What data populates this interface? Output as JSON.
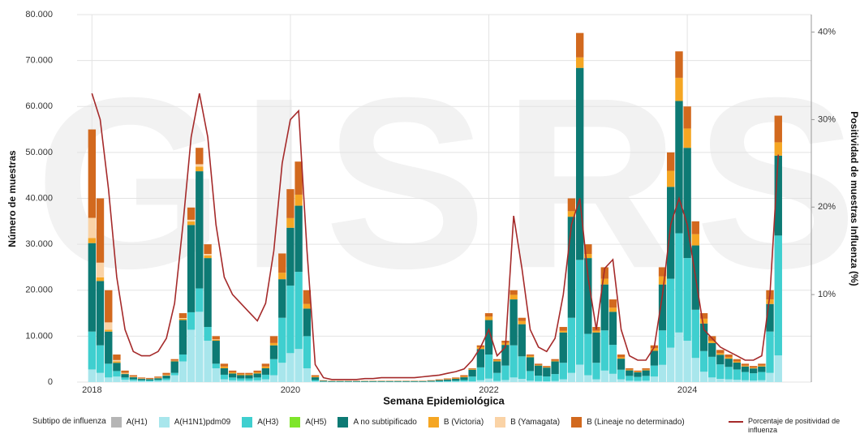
{
  "chart_data": {
    "type": "bar",
    "stacked": true,
    "watermark": "GISRS",
    "x_label": "Semana Epidemiológica",
    "y_label": "Número de muestras",
    "y2_label": "Positividad de muestras Influenza (%)",
    "legend_title": "Subtipo de influenza",
    "grid": true,
    "xlim": [
      2017.85,
      2025.25
    ],
    "xticks": [
      2018,
      2020,
      2022,
      2024
    ],
    "ylim": [
      0,
      80000
    ],
    "yticks": [
      0,
      {
        "value": 10000,
        "label": "10.000"
      },
      {
        "value": 20000,
        "label": "20.000"
      },
      {
        "value": 30000,
        "label": "30.000"
      },
      {
        "value": 40000,
        "label": "40.000"
      },
      {
        "value": 50000,
        "label": "50.000"
      },
      {
        "value": 60000,
        "label": "60.000"
      },
      {
        "value": 70000,
        "label": "70.000"
      },
      {
        "value": 80000,
        "label": "80.000"
      }
    ],
    "y2lim": [
      0,
      42
    ],
    "y2ticks": [
      {
        "value": 10,
        "label": "10%"
      },
      {
        "value": 20,
        "label": "20%"
      },
      {
        "value": 30,
        "label": "30%"
      },
      {
        "value": 40,
        "label": "40%"
      }
    ],
    "x": [
      2018,
      2018.083,
      2018.167,
      2018.25,
      2018.333,
      2018.417,
      2018.5,
      2018.583,
      2018.667,
      2018.75,
      2018.833,
      2018.917,
      2019,
      2019.083,
      2019.167,
      2019.25,
      2019.333,
      2019.417,
      2019.5,
      2019.583,
      2019.667,
      2019.75,
      2019.833,
      2019.917,
      2020,
      2020.083,
      2020.167,
      2020.25,
      2020.333,
      2020.417,
      2020.5,
      2020.583,
      2020.667,
      2020.75,
      2020.833,
      2020.917,
      2021,
      2021.083,
      2021.167,
      2021.25,
      2021.333,
      2021.417,
      2021.5,
      2021.583,
      2021.667,
      2021.75,
      2021.833,
      2021.917,
      2022,
      2022.083,
      2022.167,
      2022.25,
      2022.333,
      2022.417,
      2022.5,
      2022.583,
      2022.667,
      2022.75,
      2022.833,
      2022.917,
      2023,
      2023.083,
      2023.167,
      2023.25,
      2023.333,
      2023.417,
      2023.5,
      2023.583,
      2023.667,
      2023.75,
      2023.833,
      2023.917,
      2024,
      2024.083,
      2024.167,
      2024.25,
      2024.333,
      2024.417,
      2024.5,
      2024.583,
      2024.667,
      2024.75,
      2024.833,
      2024.917
    ],
    "series": [
      {
        "name": "A(H1)",
        "color": "#b5b5b5",
        "values": [
          0,
          0,
          0,
          0,
          0,
          0,
          0,
          0,
          0,
          0,
          0,
          0,
          0,
          0,
          0,
          0,
          0,
          0,
          0,
          0,
          0,
          0,
          0,
          0,
          0,
          0,
          0,
          0,
          0,
          0,
          0,
          0,
          0,
          0,
          0,
          0,
          0,
          0,
          0,
          0,
          0,
          0,
          0,
          0,
          0,
          0,
          0,
          0,
          0,
          0,
          0,
          0,
          0,
          0,
          0,
          0,
          0,
          0,
          0,
          0,
          0,
          0,
          0,
          0,
          0,
          0,
          0,
          0,
          0,
          0,
          0,
          0,
          0,
          0,
          0,
          0,
          0,
          0,
          0,
          0,
          0,
          0,
          0,
          0
        ]
      },
      {
        "name": "A(H1N1)pdm09",
        "color": "#a8e6ec",
        "values": [
          2750,
          2000,
          1000,
          1200,
          500,
          300,
          200,
          180,
          240,
          400,
          1500,
          4500,
          11400,
          15300,
          9000,
          3000,
          600,
          375,
          300,
          300,
          375,
          600,
          1500,
          4200,
          6300,
          7200,
          3000,
          150,
          40,
          30,
          30,
          30,
          30,
          30,
          30,
          30,
          30,
          30,
          30,
          30,
          30,
          40,
          60,
          80,
          100,
          150,
          150,
          400,
          750,
          250,
          450,
          1000,
          700,
          300,
          200,
          175,
          250,
          600,
          2000,
          3800,
          1500,
          600,
          2500,
          1800,
          600,
          300,
          250,
          300,
          1200,
          3750,
          7500,
          10800,
          9000,
          5250,
          2250,
          1000,
          700,
          600,
          500,
          400,
          350,
          400,
          2000,
          5800
        ]
      },
      {
        "name": "A(H3)",
        "color": "#3fcfcf",
        "values": [
          8250,
          6000,
          3000,
          1200,
          500,
          300,
          200,
          180,
          240,
          400,
          500,
          1500,
          3800,
          5100,
          3000,
          1000,
          1000,
          625,
          500,
          500,
          625,
          1000,
          3500,
          9800,
          14700,
          16800,
          7000,
          300,
          80,
          60,
          60,
          60,
          60,
          60,
          60,
          60,
          60,
          60,
          60,
          60,
          60,
          80,
          120,
          160,
          200,
          300,
          1050,
          2800,
          5250,
          1750,
          3150,
          7000,
          4900,
          2100,
          1200,
          1050,
          1500,
          3600,
          12000,
          22800,
          9000,
          3600,
          8750,
          6300,
          2100,
          1050,
          875,
          1050,
          2400,
          7500,
          15000,
          21600,
          18000,
          10500,
          4500,
          4500,
          3150,
          2700,
          2250,
          1800,
          1575,
          1800,
          9000,
          26100
        ]
      },
      {
        "name": "A(H5)",
        "color": "#7ee52a",
        "values": [
          0,
          0,
          0,
          0,
          0,
          0,
          0,
          0,
          0,
          0,
          0,
          0,
          0,
          0,
          0,
          0,
          0,
          0,
          0,
          0,
          0,
          0,
          0,
          0,
          0,
          0,
          0,
          0,
          0,
          0,
          0,
          0,
          0,
          0,
          0,
          0,
          0,
          0,
          0,
          0,
          0,
          0,
          0,
          0,
          0,
          0,
          0,
          0,
          0,
          0,
          0,
          0,
          0,
          0,
          0,
          0,
          0,
          0,
          0,
          0,
          0,
          0,
          0,
          0,
          0,
          0,
          0,
          0,
          0,
          0,
          0,
          0,
          0,
          0,
          0,
          0,
          0,
          0,
          0,
          0,
          0,
          0,
          0,
          0
        ]
      },
      {
        "name": "A no subtipificado",
        "color": "#0d7a74",
        "values": [
          19250,
          14000,
          7000,
          1800,
          750,
          450,
          300,
          270,
          360,
          600,
          2500,
          7500,
          19000,
          25500,
          15000,
          5000,
          1400,
          875,
          700,
          700,
          875,
          1400,
          3000,
          8400,
          12600,
          14400,
          6000,
          600,
          160,
          120,
          120,
          120,
          120,
          120,
          120,
          120,
          120,
          120,
          120,
          120,
          120,
          160,
          240,
          320,
          400,
          600,
          1500,
          4000,
          7500,
          2500,
          4500,
          10000,
          7000,
          3000,
          2200,
          1925,
          2750,
          6600,
          22000,
          41800,
          16500,
          6600,
          10000,
          7200,
          2400,
          1200,
          1000,
          1200,
          3200,
          10000,
          20000,
          28800,
          24000,
          14000,
          6000,
          3000,
          2100,
          1800,
          1500,
          1200,
          1050,
          1200,
          6000,
          17400
        ]
      },
      {
        "name": "B (Victoria)",
        "color": "#f5a623",
        "values": [
          1100,
          800,
          400,
          300,
          125,
          75,
          50,
          45,
          60,
          100,
          100,
          300,
          760,
          1020,
          600,
          200,
          400,
          250,
          200,
          200,
          250,
          400,
          500,
          1400,
          2100,
          2400,
          1000,
          150,
          40,
          30,
          30,
          30,
          30,
          30,
          30,
          30,
          30,
          30,
          30,
          30,
          30,
          40,
          60,
          80,
          100,
          150,
          150,
          400,
          750,
          250,
          450,
          1000,
          700,
          300,
          120,
          105,
          150,
          360,
          1200,
          2280,
          900,
          360,
          1250,
          900,
          300,
          150,
          125,
          150,
          560,
          1750,
          3500,
          5040,
          4200,
          2450,
          1050,
          500,
          350,
          300,
          250,
          200,
          175,
          200,
          1000,
          2900
        ]
      },
      {
        "name": "B (Yamagata)",
        "color": "#fad3a6",
        "values": [
          4400,
          3200,
          1600,
          300,
          125,
          75,
          50,
          45,
          60,
          100,
          50,
          150,
          380,
          510,
          300,
          100,
          0,
          0,
          0,
          0,
          0,
          0,
          0,
          0,
          0,
          0,
          0,
          0,
          0,
          0,
          0,
          0,
          0,
          0,
          0,
          0,
          0,
          0,
          0,
          0,
          0,
          0,
          0,
          0,
          0,
          0,
          0,
          0,
          0,
          0,
          0,
          0,
          0,
          0,
          0,
          0,
          0,
          0,
          0,
          0,
          0,
          0,
          0,
          0,
          0,
          0,
          0,
          0,
          0,
          0,
          0,
          0,
          0,
          0,
          0,
          0,
          0,
          0,
          0,
          0,
          0,
          0,
          0,
          0
        ]
      },
      {
        "name": "B (Lineaje no determinado)",
        "color": "#d2691e",
        "values": [
          19250,
          14000,
          7000,
          1200,
          500,
          300,
          200,
          180,
          240,
          400,
          350,
          1050,
          2660,
          3570,
          2100,
          700,
          600,
          375,
          300,
          300,
          375,
          600,
          1500,
          4200,
          6300,
          7200,
          3000,
          300,
          80,
          60,
          60,
          60,
          60,
          60,
          60,
          60,
          60,
          60,
          60,
          60,
          60,
          80,
          120,
          160,
          200,
          300,
          150,
          400,
          750,
          250,
          450,
          1000,
          700,
          300,
          280,
          245,
          350,
          840,
          2800,
          5320,
          2100,
          840,
          2500,
          1800,
          600,
          300,
          250,
          300,
          640,
          2000,
          4000,
          5760,
          4800,
          2800,
          1200,
          1000,
          700,
          600,
          500,
          400,
          350,
          400,
          2000,
          5800
        ]
      },
      {
        "name": "Porcentaje de positividad de influenza",
        "color": "#a52a2a",
        "type": "line",
        "axis": "y2",
        "values": [
          33,
          30,
          22,
          12,
          6,
          3.5,
          3,
          3,
          3.5,
          5,
          9,
          18,
          28,
          33,
          28,
          18,
          12,
          10,
          9,
          8,
          7,
          9,
          15,
          25,
          30,
          31,
          15,
          2,
          0.5,
          0.3,
          0.3,
          0.3,
          0.3,
          0.4,
          0.4,
          0.5,
          0.5,
          0.5,
          0.5,
          0.5,
          0.6,
          0.7,
          0.8,
          1,
          1.2,
          1.5,
          2.5,
          4,
          6,
          3,
          4,
          19,
          13,
          6,
          4,
          3.5,
          5,
          10,
          18,
          21,
          12,
          6,
          13,
          14,
          6,
          3,
          2.5,
          2.5,
          4,
          10,
          18,
          21,
          18,
          12,
          6,
          5,
          4,
          3.5,
          3,
          2.5,
          2.5,
          3,
          10,
          26
        ]
      }
    ]
  }
}
